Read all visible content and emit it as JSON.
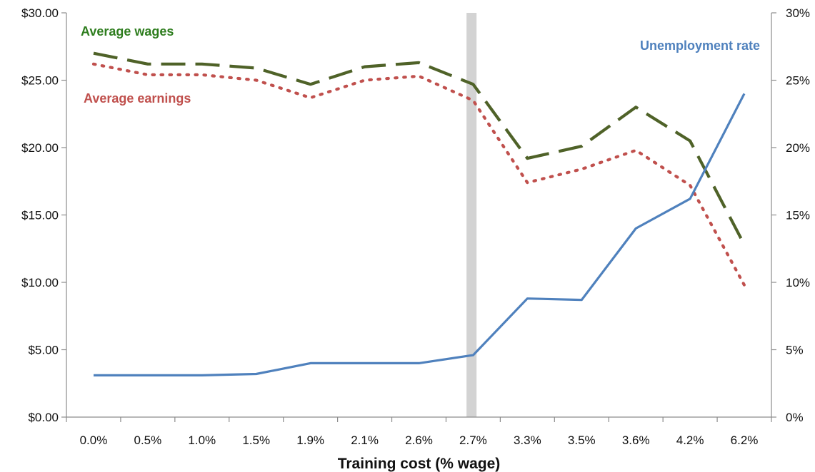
{
  "chart_data": {
    "type": "line",
    "categories": [
      "0.0%",
      "0.5%",
      "1.0%",
      "1.5%",
      "1.9%",
      "2.1%",
      "2.6%",
      "2.7%",
      "3.3%",
      "3.5%",
      "3.6%",
      "4.2%",
      "6.2%"
    ],
    "xlabel": "Training cost (% wage)",
    "ylabel": "",
    "ylim": [
      0,
      30
    ],
    "y_ticks": [
      "$0.00",
      "$5.00",
      "$10.00",
      "$15.00",
      "$20.00",
      "$25.00",
      "$30.00"
    ],
    "y2lim": [
      0,
      30
    ],
    "y2_ticks": [
      "0%",
      "5%",
      "10%",
      "15%",
      "20%",
      "25%",
      "30%"
    ],
    "grid": false,
    "highlight_band": {
      "between_categories": [
        "2.6%",
        "2.7%"
      ],
      "position": 0.97,
      "color": "#d3d3d3"
    },
    "series": [
      {
        "name": "Average wages",
        "axis": "left",
        "style": "dashed",
        "color": "#4f6228",
        "label_color": "#2e7d1e",
        "values": [
          27.0,
          26.2,
          26.2,
          25.9,
          24.7,
          26.0,
          26.3,
          24.7,
          19.2,
          20.1,
          23.0,
          20.5,
          12.8
        ]
      },
      {
        "name": "Average earnings",
        "axis": "left",
        "style": "dotted",
        "color": "#c0504d",
        "label_color": "#c0504d",
        "values": [
          26.2,
          25.4,
          25.4,
          25.0,
          23.7,
          25.0,
          25.3,
          23.5,
          17.4,
          18.4,
          19.8,
          17.2,
          9.8
        ]
      },
      {
        "name": "Unemployment rate",
        "axis": "right",
        "style": "solid",
        "color": "#4f81bd",
        "label_color": "#4f81bd",
        "values": [
          3.1,
          3.1,
          3.1,
          3.2,
          4.0,
          4.0,
          4.0,
          4.6,
          8.8,
          8.7,
          14.0,
          16.2,
          24.0
        ]
      }
    ]
  }
}
